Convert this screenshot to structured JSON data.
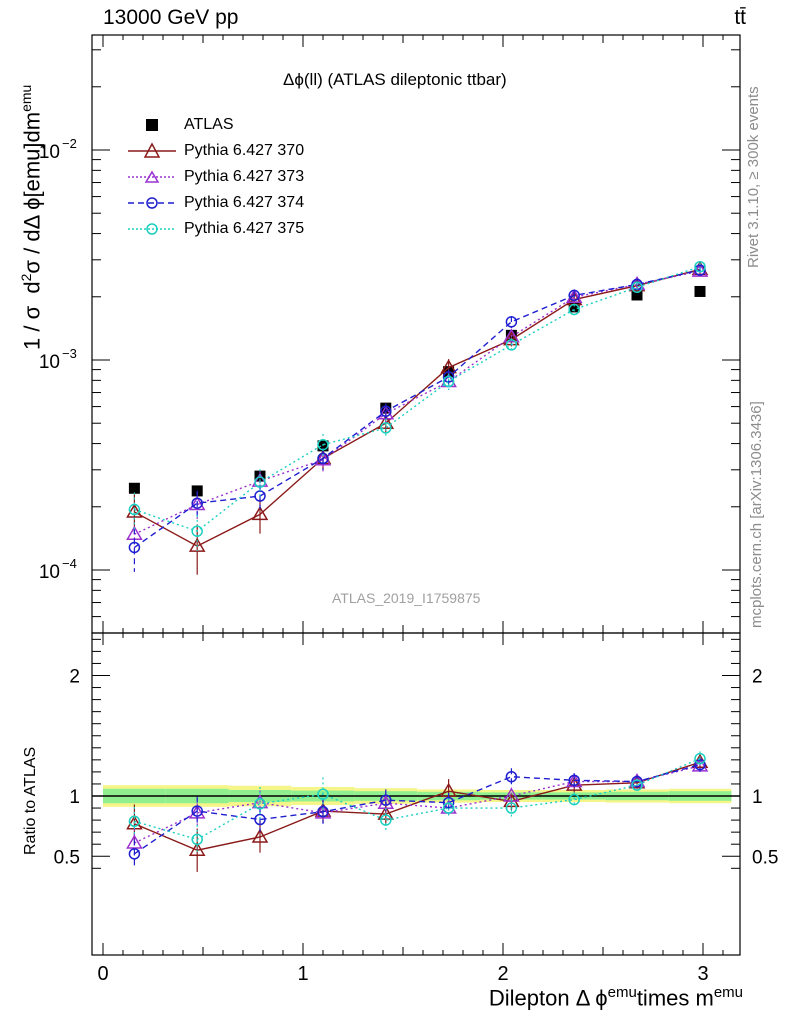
{
  "header": {
    "left": "13000 GeV pp",
    "right": "tt̄"
  },
  "side_labels": {
    "rivet": "Rivet 3.1.10, ≥ 300k events",
    "mcplots": "mcplots.cern.ch [arXiv:1306.3436]"
  },
  "chart_data": [
    {
      "type": "scatter",
      "title": "Δϕ(ll) (ATLAS dileptonic ttbar)",
      "ylabel": "1 / σ  d²σ / dΔ ϕ[emu]dm^emu",
      "yscale": "log",
      "ylim": [
        5e-05,
        0.04
      ],
      "xlim": [
        -0.1,
        3.2
      ],
      "reference_label": "ATLAS_2019_I1759875",
      "legend_position": "top-left",
      "x": [
        0.157,
        0.471,
        0.785,
        1.1,
        1.414,
        1.728,
        2.042,
        2.356,
        2.67,
        2.985
      ],
      "series": [
        {
          "name": "ATLAS",
          "color": "#000000",
          "marker": "square",
          "line": "none",
          "values": [
            0.000245,
            0.000238,
            0.00028,
            0.00039,
            0.00059,
            0.00088,
            0.00131,
            0.00179,
            0.00204,
            0.00212
          ]
        },
        {
          "name": "Pythia 6.427 370",
          "color": "#8b1a1a",
          "marker": "triangle",
          "line": "solid",
          "values": [
            0.000189,
            0.00013,
            0.000184,
            0.00034,
            0.0005,
            0.00092,
            0.00125,
            0.00194,
            0.00226,
            0.0027
          ],
          "err": [
            4e-05,
            3.5e-05,
            3.5e-05,
            4e-05,
            5e-05,
            9e-05,
            9e-05,
            0.0001,
            0.0001,
            0.00012
          ]
        },
        {
          "name": "Pythia 6.427 373",
          "color": "#9b30d0",
          "marker": "triangle",
          "line": "dotted",
          "values": [
            0.000148,
            0.000205,
            0.000265,
            0.000335,
            0.000555,
            0.00079,
            0.00129,
            0.00199,
            0.00229,
            0.00265
          ],
          "err": [
            3e-05,
            3e-05,
            3e-05,
            4e-05,
            5e-05,
            7e-05,
            0.0001,
            0.0001,
            0.0001,
            0.00012
          ]
        },
        {
          "name": "Pythia 6.427 374",
          "color": "#1f1fd0",
          "marker": "circle",
          "line": "dashed",
          "values": [
            0.000128,
            0.000208,
            0.000225,
            0.00034,
            0.00057,
            0.00083,
            0.00152,
            0.00203,
            0.00229,
            0.00268
          ],
          "err": [
            3e-05,
            3e-05,
            3e-05,
            4e-05,
            5e-05,
            7e-05,
            0.0001,
            0.0001,
            0.0001,
            0.00012
          ]
        },
        {
          "name": "Pythia 6.427 375",
          "color": "#1ad0c0",
          "marker": "circle",
          "line": "dotted",
          "values": [
            0.000194,
            0.000153,
            0.000262,
            0.000395,
            0.000475,
            0.00079,
            0.00118,
            0.00174,
            0.00222,
            0.00278
          ],
          "err": [
            4e-05,
            3e-05,
            4e-05,
            5e-05,
            5e-05,
            7e-05,
            9e-05,
            0.0001,
            0.0001,
            0.00012
          ]
        }
      ],
      "yticks": [
        {
          "value": 0.0001,
          "base": "10",
          "exp": "−4"
        },
        {
          "value": 0.001,
          "base": "10",
          "exp": "−3"
        },
        {
          "value": 0.01,
          "base": "10",
          "exp": "−2"
        }
      ]
    },
    {
      "type": "scatter",
      "ylabel": "Ratio to ATLAS",
      "ylim": [
        0.35,
        2.5
      ],
      "xlim": [
        -0.1,
        3.2
      ],
      "xlabel": "Dilepton Δ ϕ^emu times m^emu",
      "xticks": [
        "0",
        "1",
        "2",
        "3"
      ],
      "yticks": [
        "0.5",
        "1",
        "2"
      ],
      "band": {
        "inner_color": "#90f090",
        "outer_color": "#f5f58a",
        "inner_halfwidth": [
          0.06,
          0.06,
          0.05,
          0.045,
          0.04,
          0.035,
          0.03,
          0.03,
          0.035,
          0.04
        ],
        "outer_halfwidth": [
          0.09,
          0.09,
          0.085,
          0.075,
          0.065,
          0.055,
          0.05,
          0.05,
          0.055,
          0.06
        ]
      },
      "series": [
        {
          "name": "Pythia 6.427 370",
          "values": [
            0.77,
            0.55,
            0.66,
            0.875,
            0.85,
            1.04,
            0.955,
            1.09,
            1.11,
            1.28
          ],
          "err": [
            0.16,
            0.18,
            0.13,
            0.1,
            0.09,
            0.1,
            0.07,
            0.06,
            0.05,
            0.06
          ]
        },
        {
          "name": "Pythia 6.427 373",
          "values": [
            0.61,
            0.86,
            0.945,
            0.86,
            0.94,
            0.9,
            1.0,
            1.12,
            1.12,
            1.25
          ],
          "err": [
            0.12,
            0.12,
            0.1,
            0.1,
            0.09,
            0.08,
            0.07,
            0.06,
            0.05,
            0.06
          ]
        },
        {
          "name": "Pythia 6.427 374",
          "values": [
            0.52,
            0.875,
            0.805,
            0.87,
            0.965,
            0.945,
            1.16,
            1.13,
            1.12,
            1.26
          ],
          "err": [
            0.12,
            0.12,
            0.1,
            0.1,
            0.09,
            0.08,
            0.07,
            0.06,
            0.05,
            0.06
          ]
        },
        {
          "name": "Pythia 6.427 375",
          "values": [
            0.79,
            0.64,
            0.935,
            1.015,
            0.8,
            0.9,
            0.9,
            0.97,
            1.09,
            1.31
          ],
          "err": [
            0.12,
            0.12,
            0.14,
            0.14,
            0.1,
            0.08,
            0.07,
            0.06,
            0.05,
            0.06
          ]
        }
      ]
    }
  ]
}
